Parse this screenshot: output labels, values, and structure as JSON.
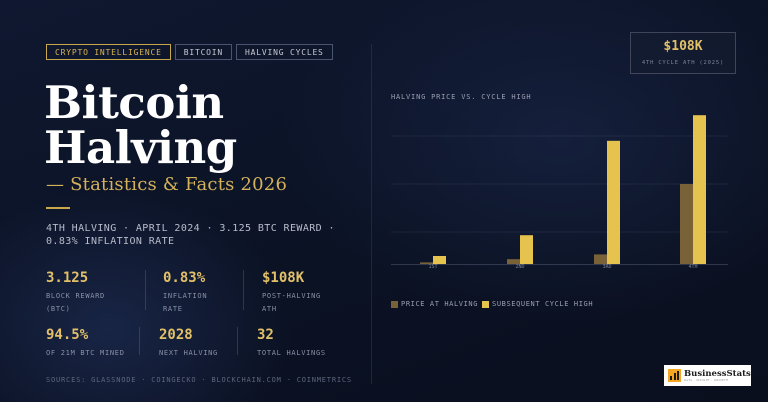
{
  "tags": [
    "CRYPTO INTELLIGENCE",
    "BITCOIN",
    "HALVING CYCLES"
  ],
  "title_line1": "Bitcoin",
  "title_line2": "Halving",
  "subtitle": "— Statistics & Facts 2026",
  "summary": "4TH HALVING · APRIL 2024 · 3.125 BTC REWARD · 0.83% INFLATION RATE",
  "stats": [
    {
      "value": "3.125",
      "label1": "BLOCK REWARD",
      "label2": "(BTC)"
    },
    {
      "value": "0.83%",
      "label1": "INFLATION",
      "label2": "RATE"
    },
    {
      "value": "$108K",
      "label1": "POST-HALVING",
      "label2": "ATH"
    },
    {
      "value": "94.5%",
      "label1": "OF 21M BTC MINED",
      "label2": ""
    },
    {
      "value": "2028",
      "label1": "NEXT HALVING",
      "label2": ""
    },
    {
      "value": "32",
      "label1": "TOTAL HALVINGS",
      "label2": ""
    }
  ],
  "sources": "SOURCES: GLASSNODE · COINGECKO · BLOCKCHAIN.COM · COINMETRICS",
  "ath_card": {
    "value": "$108K",
    "label": "4TH CYCLE ATH (2025)"
  },
  "brand": {
    "name": "BusinessStats",
    "tagline": "DATA · INSIGHT · GROWTH"
  },
  "colors": {
    "accent": "#d9b554",
    "bar_halving": "#7a6238",
    "bar_high": "#e6c24e",
    "background": "#0c1326"
  },
  "chart_data": {
    "type": "bar",
    "title": "HALVING PRICE VS. CYCLE HIGH",
    "categories": [
      "1ST",
      "2ND",
      "3RD",
      "4TH"
    ],
    "series": [
      {
        "name": "PRICE AT HALVING",
        "values": [
          1,
          3,
          6,
          50
        ]
      },
      {
        "name": "SUBSEQUENT CYCLE HIGH",
        "values": [
          5,
          18,
          77,
          93
        ]
      }
    ],
    "ylim": [
      0,
      100
    ],
    "grid": true,
    "legend": "bottom-left"
  }
}
